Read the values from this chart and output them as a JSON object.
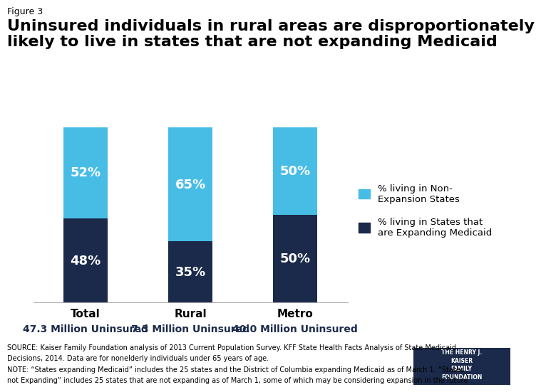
{
  "figure_label": "Figure 3",
  "title": "Uninsured individuals in rural areas are disproportionately\nlikely to live in states that are not expanding Medicaid",
  "categories": [
    "Total",
    "Rural",
    "Metro"
  ],
  "subtitles": [
    "47.3 Million Uninsured",
    "7.3 Million Uninsured",
    "40.0 Million Uninsured"
  ],
  "expanding_pct": [
    48,
    35,
    50
  ],
  "non_expanding_pct": [
    52,
    65,
    50
  ],
  "color_non_expanding": "#47BDE6",
  "color_expanding": "#1B2A4A",
  "legend_non_expanding": "% living in Non-\nExpansion States",
  "legend_expanding": "% living in States that\nare Expanding Medicaid",
  "source_line1": "SOURCE: Kaiser Family Foundation analysis of 2013 Current Population Survey. KFF State Health Facts Analysis of State Medicaid",
  "source_line2": "Decisions, 2014. Data are for nonelderly individuals under 65 years of age.",
  "note_line1": "NOTE: “States expanding Medicaid” includes the 25 states and the District of Columbia expanding Medicaid as of March 1. “States",
  "note_line2": "not Expanding” includes 25 states that are not expanding as of March 1, some of which may be considering expansion in the future",
  "bar_width": 0.42,
  "bar_positions": [
    0,
    1,
    2
  ],
  "background_color": "#FFFFFF",
  "bar_label_fontsize": 13
}
